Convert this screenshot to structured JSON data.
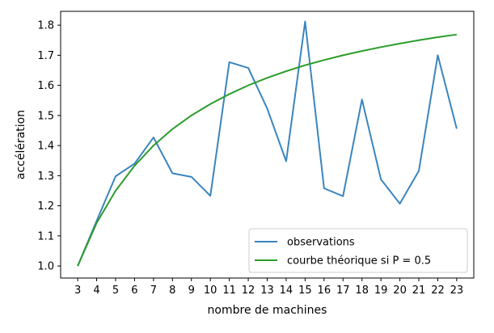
{
  "chart_data": {
    "type": "line",
    "xlabel": "nombre de machines",
    "ylabel": "accélération",
    "xlim": [
      2.1,
      23.9
    ],
    "ylim": [
      0.96,
      1.846
    ],
    "xticks": [
      3,
      4,
      5,
      6,
      7,
      8,
      9,
      10,
      11,
      12,
      13,
      14,
      15,
      16,
      17,
      18,
      19,
      20,
      21,
      22,
      23
    ],
    "yticks": [
      1.0,
      1.1,
      1.2,
      1.3,
      1.4,
      1.5,
      1.6,
      1.7,
      1.8
    ],
    "ytick_labels": [
      "1.0",
      "1.1",
      "1.2",
      "1.3",
      "1.4",
      "1.5",
      "1.6",
      "1.7",
      "1.8"
    ],
    "grid": false,
    "legend_position": "lower-right",
    "series": [
      {
        "name": "observations",
        "color": "#3a85bf",
        "x": [
          3,
          4,
          5,
          6,
          7,
          8,
          9,
          10,
          11,
          12,
          13,
          14,
          15,
          16,
          17,
          18,
          19,
          20,
          21,
          22,
          23
        ],
        "y": [
          1.0,
          1.15,
          1.298,
          1.34,
          1.427,
          1.308,
          1.296,
          1.233,
          1.677,
          1.658,
          1.523,
          1.348,
          1.812,
          1.258,
          1.232,
          1.553,
          1.288,
          1.207,
          1.316,
          1.7,
          1.456
        ]
      },
      {
        "name": "courbe théorique si P = 0.5",
        "color": "#2c9c2c",
        "x": [
          3,
          4,
          5,
          6,
          7,
          8,
          9,
          10,
          11,
          12,
          13,
          14,
          15,
          16,
          17,
          18,
          19,
          20,
          21,
          22,
          23
        ],
        "y": [
          1.0,
          1.143,
          1.25,
          1.333,
          1.4,
          1.455,
          1.5,
          1.538,
          1.571,
          1.6,
          1.625,
          1.647,
          1.667,
          1.684,
          1.7,
          1.714,
          1.727,
          1.739,
          1.75,
          1.76,
          1.769
        ]
      }
    ]
  }
}
